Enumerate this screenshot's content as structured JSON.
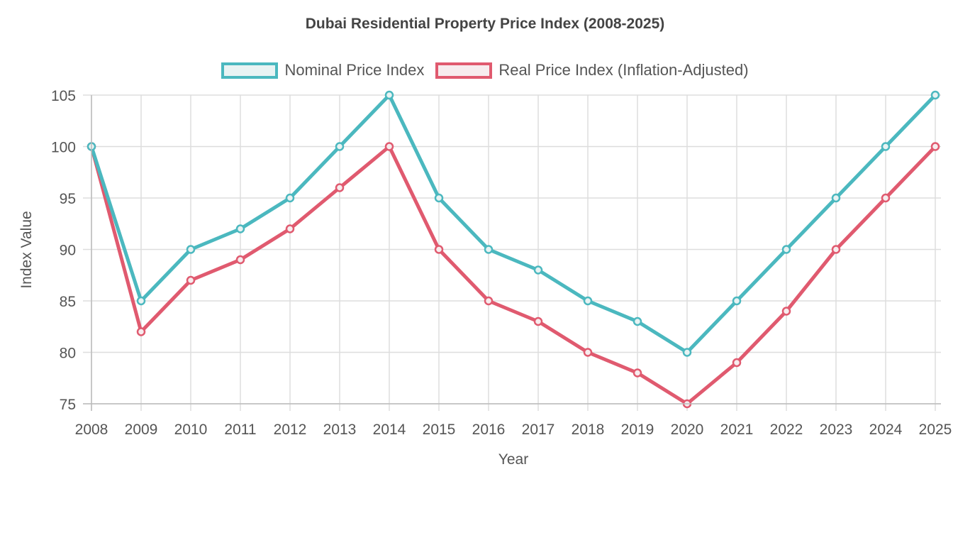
{
  "chart_data": {
    "type": "line",
    "title": "Dubai Residential Property Price Index (2008-2025)",
    "xlabel": "Year",
    "ylabel": "Index Value",
    "categories": [
      "2008",
      "2009",
      "2010",
      "2011",
      "2012",
      "2013",
      "2014",
      "2015",
      "2016",
      "2017",
      "2018",
      "2019",
      "2020",
      "2021",
      "2022",
      "2023",
      "2024",
      "2025"
    ],
    "ylim": [
      75,
      105
    ],
    "yticks": [
      75,
      80,
      85,
      90,
      95,
      100,
      105
    ],
    "grid": true,
    "legend_position": "top",
    "series": [
      {
        "name": "Nominal Price Index",
        "color": "#4bb8bf",
        "fill": "#e8f3f3",
        "values": [
          100,
          85,
          90,
          92,
          95,
          100,
          105,
          95,
          90,
          88,
          85,
          83,
          80,
          85,
          90,
          95,
          100,
          105
        ]
      },
      {
        "name": "Real Price Index (Inflation-Adjusted)",
        "color": "#e05a6f",
        "fill": "#f7ecee",
        "values": [
          100,
          82,
          87,
          89,
          92,
          96,
          100,
          90,
          85,
          83,
          80,
          78,
          75,
          79,
          84,
          90,
          95,
          100
        ]
      }
    ]
  }
}
